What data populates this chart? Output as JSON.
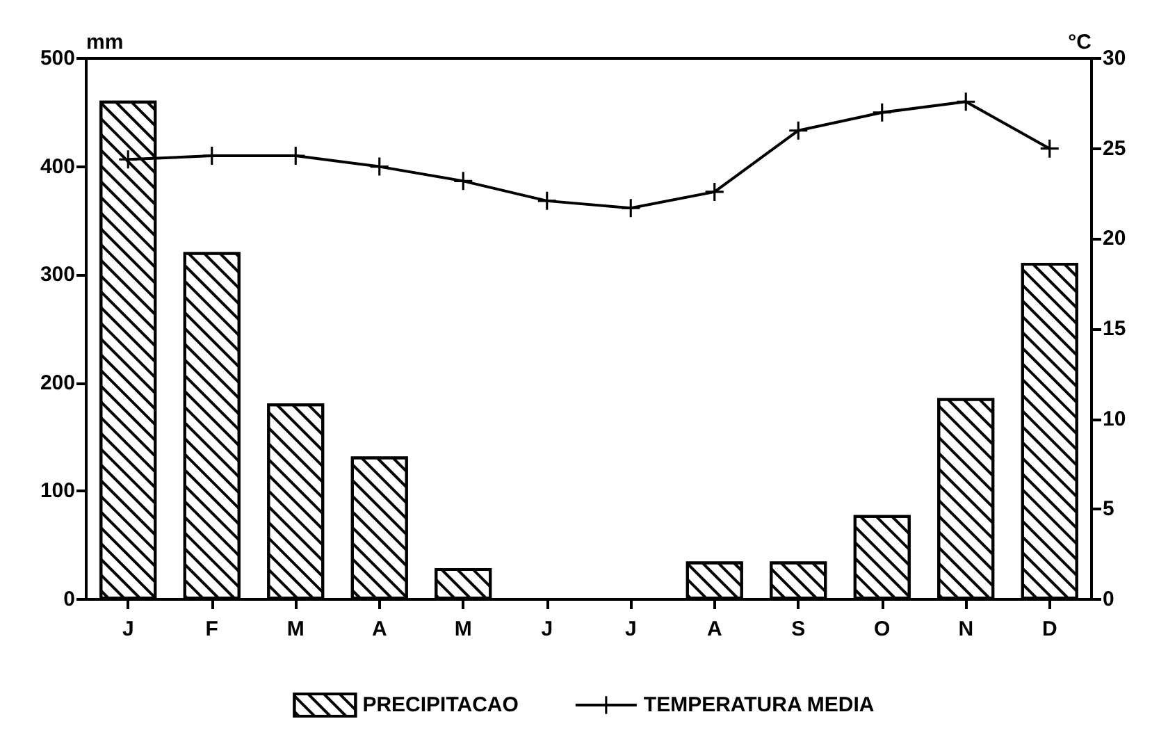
{
  "chart_data": {
    "type": "bar",
    "ylabel": "mm",
    "y2label": "°C",
    "categories": [
      "J",
      "F",
      "M",
      "A",
      "M",
      "J",
      "J",
      "A",
      "S",
      "O",
      "N",
      "D"
    ],
    "series": [
      {
        "name": "PRECIPITACAO",
        "color": "#ffffff",
        "values": [
          461,
          321,
          181,
          132,
          29,
          0,
          0,
          35,
          35,
          78,
          186,
          311
        ]
      },
      {
        "name": "TEMPERATURA MEDIA",
        "type": "line",
        "axis": "y2",
        "color": "#000000",
        "marker": "cross",
        "values": [
          24.4,
          24.6,
          24.6,
          24.0,
          23.2,
          22.1,
          21.7,
          22.6,
          26.0,
          27.0,
          27.6,
          25.0
        ]
      }
    ],
    "ylim": [
      0,
      500
    ],
    "yticks": [
      0,
      100,
      200,
      300,
      400,
      500
    ],
    "y2lim": [
      0,
      30
    ],
    "y2ticks": [
      0,
      5,
      10,
      15,
      20,
      25,
      30
    ],
    "grid": false,
    "legend": "bottom"
  }
}
